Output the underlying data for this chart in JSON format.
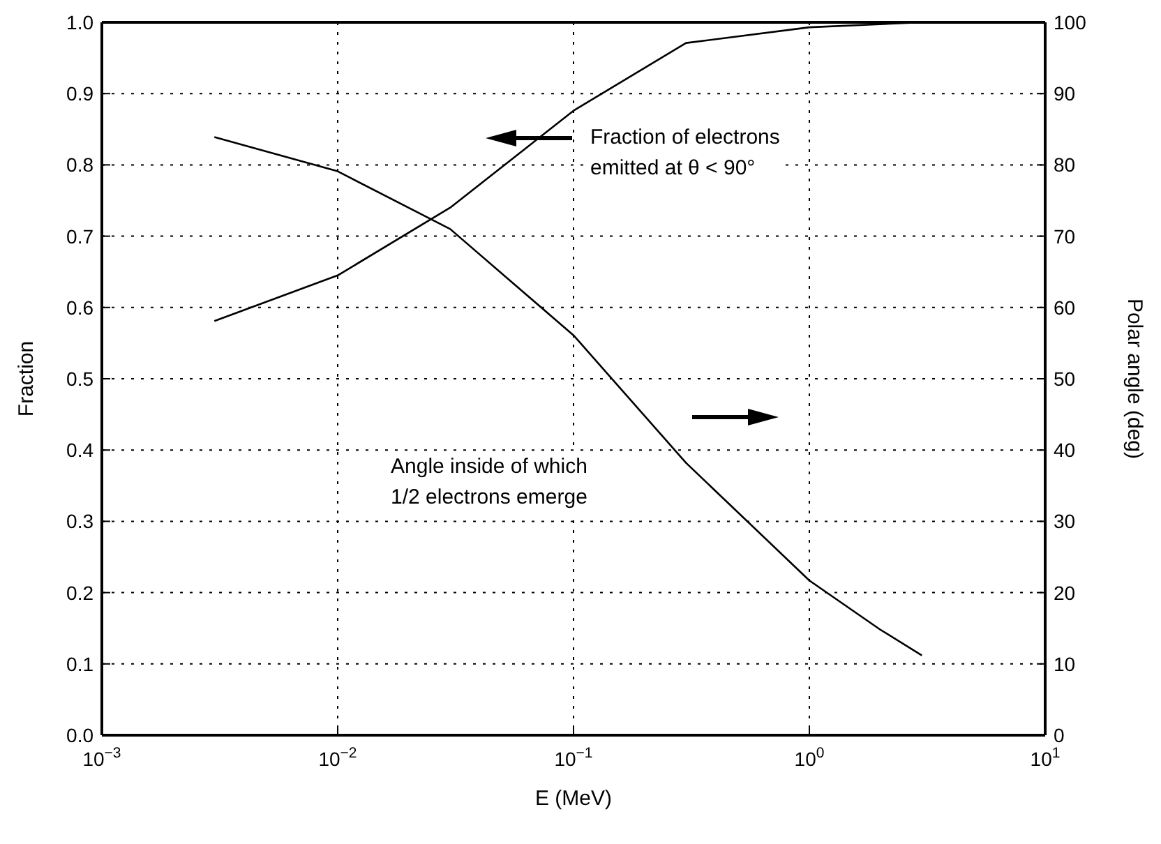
{
  "chart_data": {
    "type": "line",
    "xlabel": "E (MeV)",
    "ylabel": "Fraction",
    "y2label": "Polar angle (deg)",
    "x": [
      0.003,
      0.01,
      0.03,
      0.1,
      0.3,
      1,
      2,
      3
    ],
    "series": [
      {
        "color": "#000000",
        "values": [
          0.581,
          0.645,
          0.74,
          0.876,
          0.971,
          0.993,
          null,
          1.0
        ]
      },
      {
        "color": "#000000",
        "axis": "y2",
        "values": [
          83.9,
          79.1,
          71.0,
          56.1,
          38.2,
          21.7,
          14.8,
          11.2
        ]
      }
    ],
    "log": "x",
    "xlim": [
      0.001,
      10
    ],
    "xticks": [
      {
        "value": 0.001,
        "label": "10$^{−3}$"
      },
      {
        "value": 0.01,
        "label": "10$^{−2}$"
      },
      {
        "value": 0.1,
        "label": "10$^{−1}$"
      },
      {
        "value": 1,
        "label": "10$^{0}$"
      },
      {
        "value": 10,
        "label": "10$^{1}$"
      }
    ],
    "ylim": [
      0,
      1
    ],
    "yticks": [
      {
        "value": 0,
        "label": "0.0"
      },
      0.1,
      0.2,
      0.3,
      0.4,
      0.5,
      0.6,
      0.7,
      0.8,
      0.9,
      {
        "value": 1,
        "label": "1.0"
      }
    ],
    "y2lim": [
      0,
      100
    ],
    "y2ticks": [
      0,
      10,
      20,
      30,
      40,
      50,
      60,
      70,
      80,
      90,
      100
    ],
    "grid": true,
    "legend": false,
    "marker": "none",
    "line_style": "solid",
    "annotations": [
      "Fraction of electrons\nemitted at θ < 90°",
      "Angle inside of which\n1/2 electrons emerge"
    ]
  }
}
